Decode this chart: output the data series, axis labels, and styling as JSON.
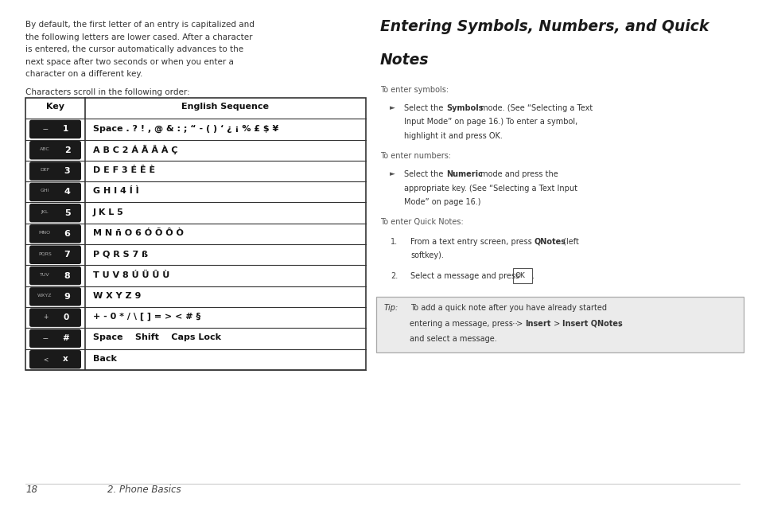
{
  "bg_color": "#ffffff",
  "page_width": 9.54,
  "page_height": 6.36,
  "left_intro_lines": [
    "By default, the first letter of an entry is capitalized and",
    "the following letters are lower cased. After a character",
    "is entered, the cursor automatically advances to the",
    "next space after two seconds or when you enter a",
    "character on a different key."
  ],
  "left_scroll_line": "Characters scroll in the following order:",
  "table_key_col_label": "Key",
  "table_seq_col_label": "English Sequence",
  "table_rows": [
    [
      "Space . ? ! , @ & : ; “ - ( ) ‘ ¿ ¡ % £ $ ¥",
      "-- 1",
      "--",
      "1"
    ],
    [
      "A B C 2 Á Ã Â À Ç",
      "ABC 2",
      "ABC",
      "2"
    ],
    [
      "D E F 3 É Ê È",
      "DEF 3",
      "DEF",
      "3"
    ],
    [
      "G H I 4 Í Ì",
      "GHI 4",
      "GHI",
      "4"
    ],
    [
      "J K L 5",
      "JKL 5",
      "JKL",
      "5"
    ],
    [
      "M N ñ O 6 Ó Õ Ô Ò",
      "MNO 6",
      "MNO",
      "6"
    ],
    [
      "P Q R S 7 ß",
      "PQRS 7",
      "PQRS",
      "7"
    ],
    [
      "T U V 8 Ú Ü Û Ù",
      "TUV 8",
      "TUV",
      "8"
    ],
    [
      "W X Y Z 9",
      "WXYZ 9",
      "WXYZ",
      "9"
    ],
    [
      "+ - 0 * / \\ [ ] = > < # §",
      "+ 0",
      "+",
      "0"
    ],
    [
      "Space    Shift    Caps Lock",
      "-- #",
      "--",
      "#"
    ],
    [
      "Back",
      "< x",
      "<",
      "x"
    ]
  ],
  "right_title_line1": "Entering Symbols, Numbers, and Quick",
  "right_title_line2": "Notes",
  "section1_label": "To enter symbols:",
  "section1_bullet_lines": [
    "Select the Symbols mode. (See “Selecting a Text",
    "Input Mode” on page 16.) To enter a symbol,",
    "highlight it and press OK."
  ],
  "section1_bullet_bold": [
    "Symbols"
  ],
  "section2_label": "To enter numbers:",
  "section2_bullet_lines": [
    "Select the Numeric mode and press the",
    "appropriate key. (See “Selecting a Text Input",
    "Mode” on page 16.)"
  ],
  "section2_bullet_bold": [
    "Numeric"
  ],
  "section3_label": "To enter Quick Notes:",
  "section3_num1_lines": [
    "From a text entry screen, press QNotes (left",
    "softkey)."
  ],
  "section3_num1_bold": [
    "QNotes"
  ],
  "section3_num2_line": "Select a message and press OK.",
  "tip_label": "Tip:",
  "tip_lines": [
    "To add a quick note after you have already started",
    "entering a message, press  > Insert > Insert QNotes,",
    "and select a message."
  ],
  "tip_bold": [
    "Insert",
    "Insert QNotes"
  ],
  "footer_num": "18",
  "footer_text": "2. Phone Basics"
}
